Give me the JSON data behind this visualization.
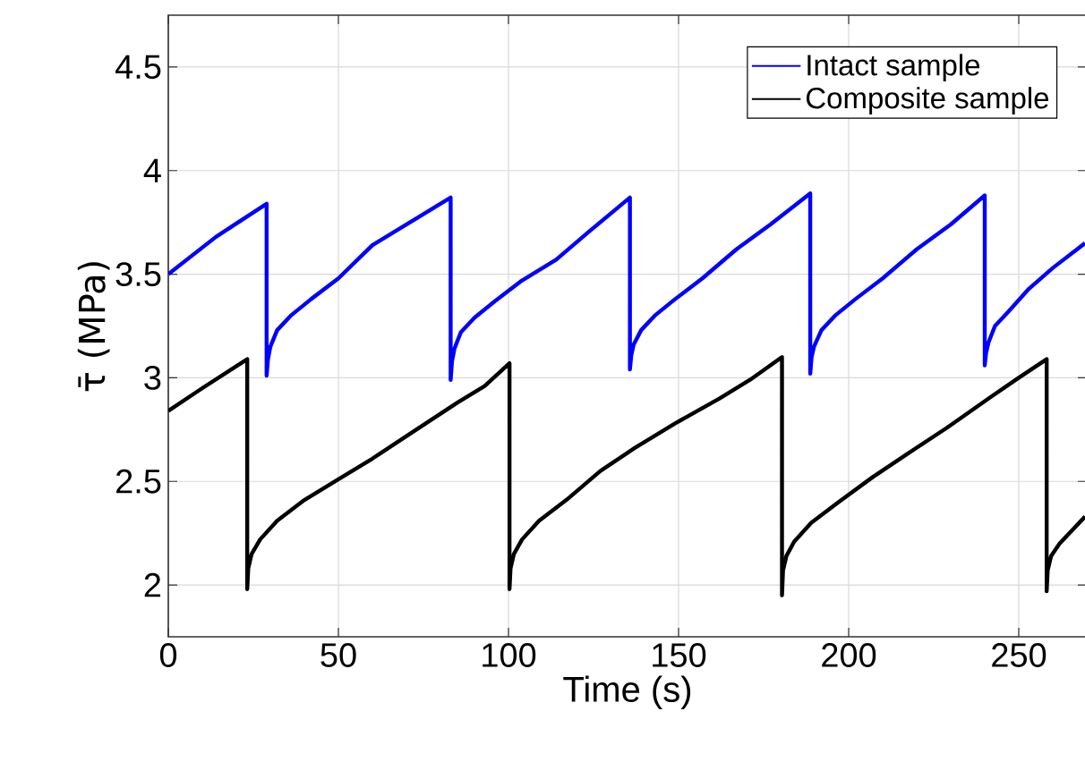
{
  "chart_data": {
    "type": "line",
    "xlabel": "Time (s)",
    "ylabel": "τ̄ (MPa)",
    "xlim": [
      0,
      270
    ],
    "ylim": [
      1.75,
      4.75
    ],
    "xticks": [
      0,
      50,
      100,
      150,
      200,
      250
    ],
    "yticks": [
      2,
      2.5,
      3,
      3.5,
      4,
      4.5
    ],
    "grid": true,
    "legend": "top right",
    "series": [
      {
        "name": "Intact sample",
        "color": "#0000ff",
        "x": [
          0,
          14,
          28.9,
          28.9,
          29.3,
          30,
          32,
          36,
          42,
          50,
          60,
          72,
          83,
          83,
          83.4,
          84.1,
          86,
          90,
          96,
          104,
          114,
          124,
          135.7,
          135.7,
          136.1,
          136.8,
          139,
          143,
          149,
          157,
          167,
          177,
          188.7,
          188.7,
          189.1,
          189.8,
          192,
          196,
          202,
          210,
          220,
          230,
          240,
          240,
          240.4,
          241.1,
          243,
          247,
          253,
          260,
          269.5
        ],
        "values": [
          3.5,
          3.68,
          3.84,
          3.01,
          3.09,
          3.15,
          3.23,
          3.3,
          3.38,
          3.48,
          3.64,
          3.76,
          3.87,
          2.99,
          3.08,
          3.14,
          3.22,
          3.29,
          3.37,
          3.47,
          3.57,
          3.71,
          3.87,
          3.04,
          3.11,
          3.16,
          3.23,
          3.3,
          3.38,
          3.48,
          3.62,
          3.74,
          3.89,
          3.02,
          3.1,
          3.15,
          3.23,
          3.3,
          3.38,
          3.48,
          3.62,
          3.74,
          3.88,
          3.06,
          3.12,
          3.17,
          3.25,
          3.32,
          3.43,
          3.53,
          3.65
        ]
      },
      {
        "name": "Composite sample",
        "color": "#000000",
        "x": [
          0,
          10,
          23.2,
          23.2,
          23.5,
          24.5,
          27,
          32,
          40,
          50,
          60,
          72,
          85,
          93,
          100.3,
          100.3,
          100.6,
          101.6,
          104,
          109,
          117,
          127,
          137,
          149,
          162,
          171,
          180.4,
          180.4,
          180.7,
          181.7,
          184,
          189,
          197,
          207,
          217,
          229,
          242,
          250,
          258.2,
          258.2,
          258.5,
          259.5,
          262,
          269.5
        ],
        "values": [
          2.84,
          2.95,
          3.09,
          1.98,
          2.08,
          2.15,
          2.22,
          2.31,
          2.41,
          2.51,
          2.61,
          2.74,
          2.88,
          2.96,
          3.07,
          1.98,
          2.08,
          2.15,
          2.22,
          2.31,
          2.41,
          2.55,
          2.66,
          2.78,
          2.9,
          2.99,
          3.1,
          1.95,
          2.07,
          2.14,
          2.21,
          2.3,
          2.4,
          2.52,
          2.63,
          2.76,
          2.91,
          3.0,
          3.09,
          1.97,
          2.07,
          2.14,
          2.2,
          2.33
        ]
      }
    ]
  }
}
